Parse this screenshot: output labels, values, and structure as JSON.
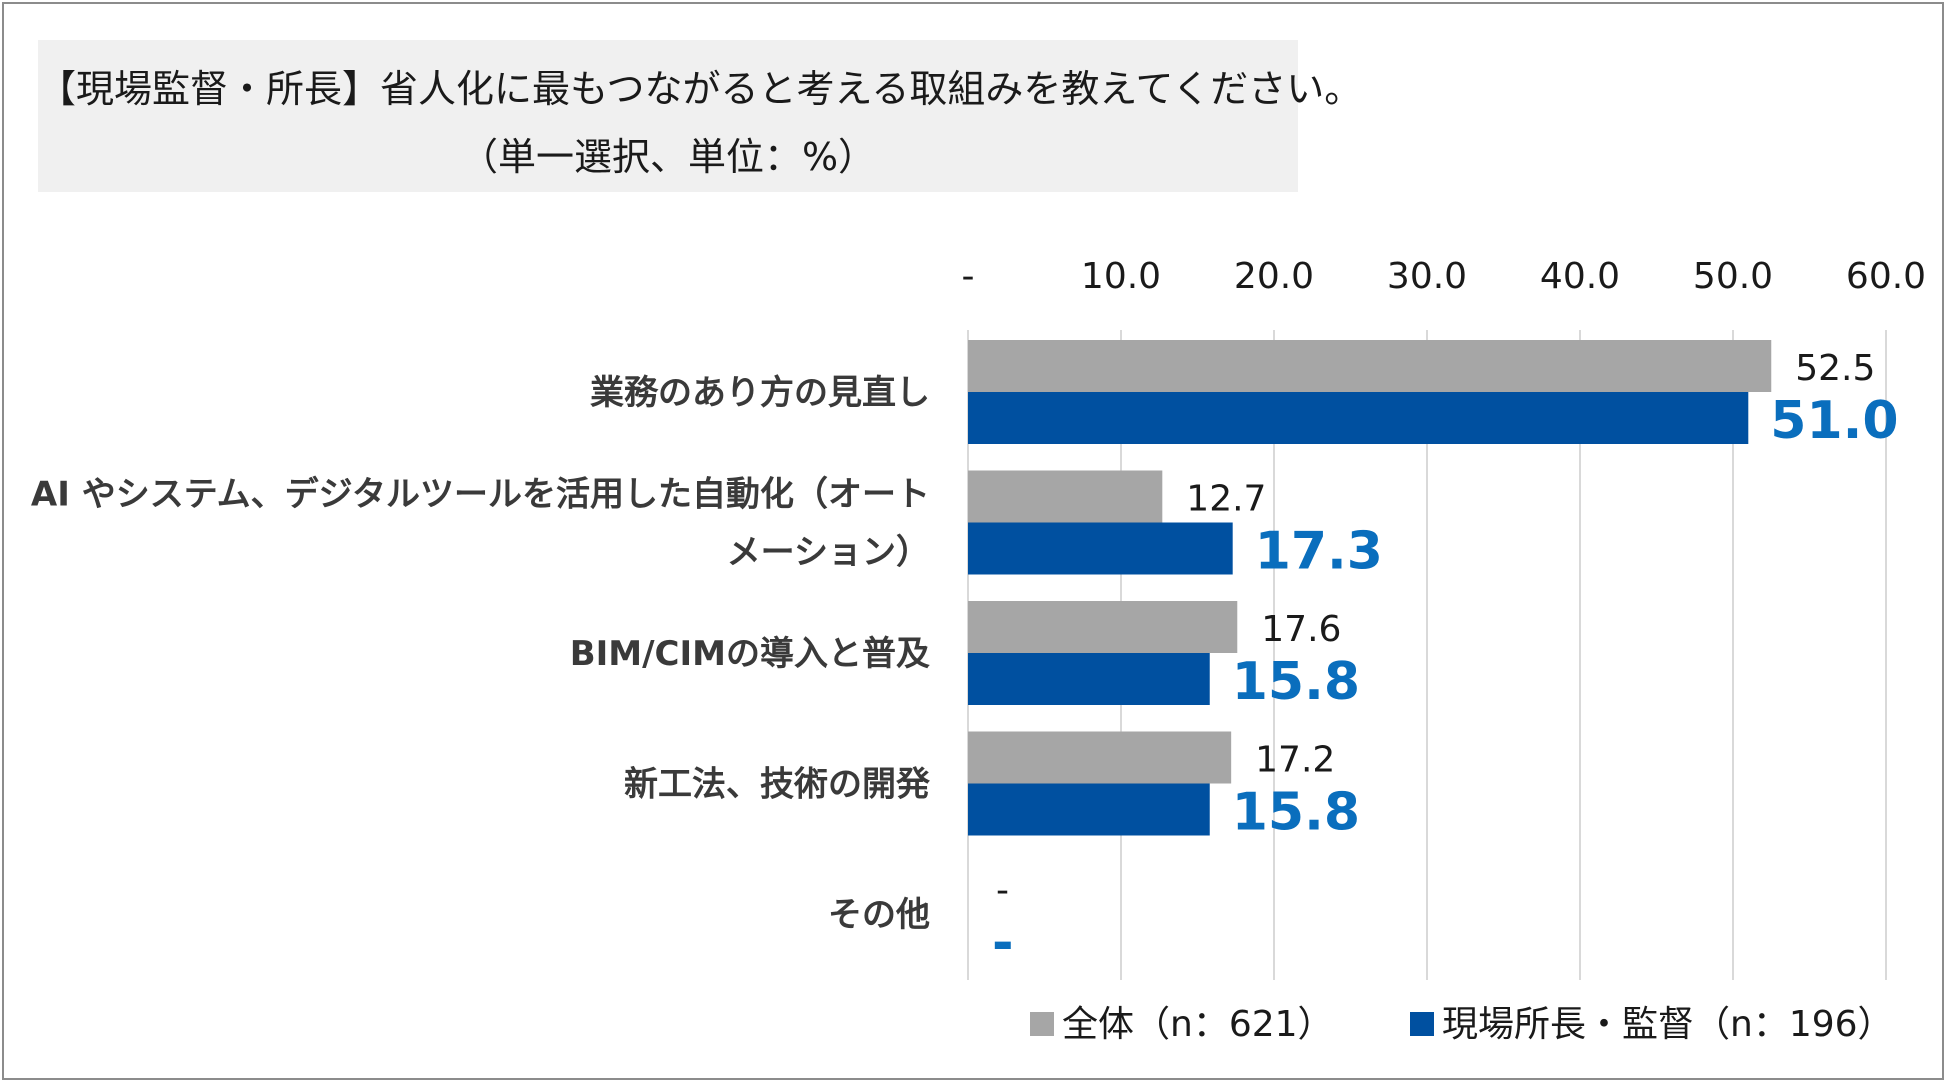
{
  "title": {
    "line1": "【現場監督・所長】省人化に最もつながると考える取組みを教えてください。",
    "line2": "（単一選択、単位：%）"
  },
  "colors": {
    "series_a": "#a6a6a6",
    "series_b": "#0050a0",
    "label_b": "#0a6ebd",
    "grid": "#d9d9d9"
  },
  "chart_data": {
    "type": "bar",
    "orientation": "horizontal",
    "categories": [
      [
        "業務のあり方の見直し"
      ],
      [
        "AI やシステム、デジタルツールを活用した自動化（オート",
        "メーション）"
      ],
      [
        "BIM/CIMの導入と普及"
      ],
      [
        "新工法、技術の開発"
      ],
      [
        "その他"
      ]
    ],
    "series": [
      {
        "name": "全体（n：621）",
        "values": [
          52.5,
          12.7,
          17.6,
          17.2,
          0
        ],
        "labels": [
          "52.5",
          "12.7",
          "17.6",
          "17.2",
          "-"
        ]
      },
      {
        "name": "現場所長・監督（n：196）",
        "values": [
          51.0,
          17.3,
          15.8,
          15.8,
          0
        ],
        "labels": [
          "51.0",
          "17.3",
          "15.8",
          "15.8",
          "-"
        ]
      }
    ],
    "xlim": [
      0,
      60
    ],
    "ticks": [
      "-",
      "10.0",
      "20.0",
      "30.0",
      "40.0",
      "50.0",
      "60.0"
    ],
    "axis_position": "top",
    "grid": true,
    "legend_position": "bottom"
  }
}
